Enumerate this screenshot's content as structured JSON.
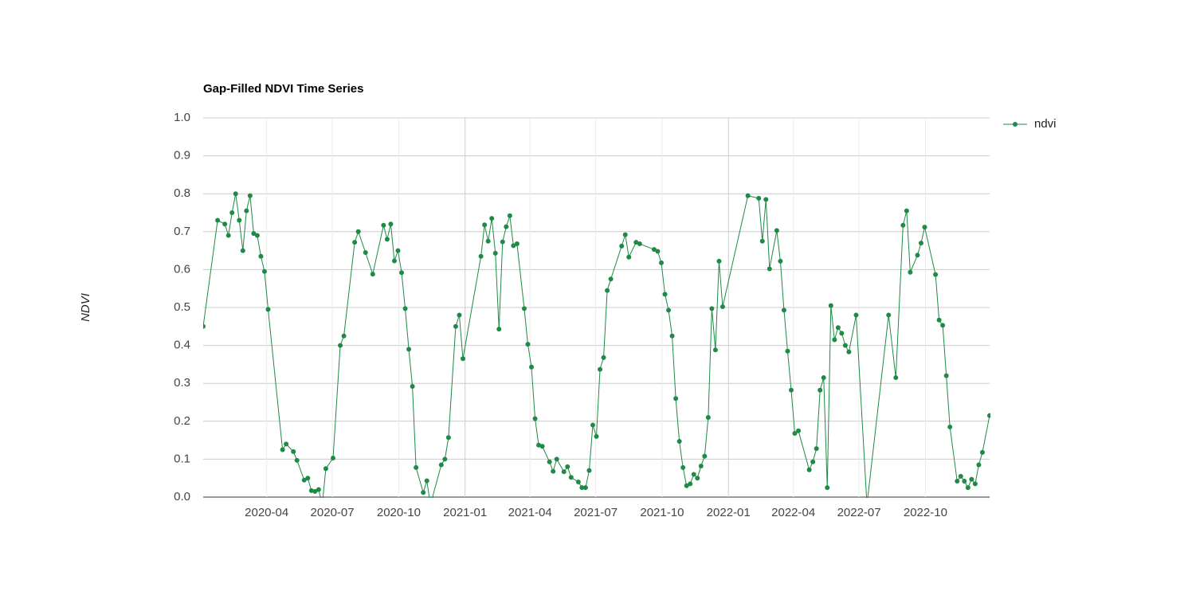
{
  "chart_data": {
    "type": "line",
    "title": "Gap-Filled NDVI Time Series",
    "y_label": "NDVI",
    "legend": "top-right",
    "grid": true,
    "xlim": [
      "2020-01-04",
      "2022-12-29"
    ],
    "xticks": [
      {
        "value": "2020-04-01",
        "label": "2020-04"
      },
      {
        "value": "2020-07-01",
        "label": "2020-07"
      },
      {
        "value": "2020-10-01",
        "label": "2020-10"
      },
      {
        "value": "2021-01-01",
        "label": "2021-01"
      },
      {
        "value": "2021-04-01",
        "label": "2021-04"
      },
      {
        "value": "2021-07-01",
        "label": "2021-07"
      },
      {
        "value": "2021-10-01",
        "label": "2021-10"
      },
      {
        "value": "2022-01-01",
        "label": "2022-01"
      },
      {
        "value": "2022-04-01",
        "label": "2022-04"
      },
      {
        "value": "2022-07-01",
        "label": "2022-07"
      },
      {
        "value": "2022-10-01",
        "label": "2022-10"
      }
    ],
    "ylim": [
      0,
      1
    ],
    "yticks": [
      {
        "value": 0,
        "label": "0.0"
      },
      0.1,
      0.2,
      0.3,
      0.4,
      0.5,
      0.6,
      0.7,
      0.8,
      0.9,
      {
        "value": 1,
        "label": "1.0"
      }
    ],
    "x": [
      "2020-01-04",
      "2020-01-24",
      "2020-02-03",
      "2020-02-08",
      "2020-02-13",
      "2020-02-18",
      "2020-02-23",
      "2020-02-28",
      "2020-03-04",
      "2020-03-09",
      "2020-03-14",
      "2020-03-19",
      "2020-03-24",
      "2020-03-29",
      "2020-04-03",
      "2020-04-23",
      "2020-04-28",
      "2020-05-08",
      "2020-05-13",
      "2020-05-23",
      "2020-05-28",
      "2020-06-02",
      "2020-06-07",
      "2020-06-12",
      "2020-06-17",
      "2020-06-22",
      "2020-07-02",
      "2020-07-12",
      "2020-07-17",
      "2020-08-01",
      "2020-08-06",
      "2020-08-16",
      "2020-08-26",
      "2020-09-10",
      "2020-09-15",
      "2020-09-20",
      "2020-09-25",
      "2020-09-30",
      "2020-10-05",
      "2020-10-10",
      "2020-10-15",
      "2020-10-20",
      "2020-10-25",
      "2020-11-04",
      "2020-11-09",
      "2020-11-14",
      "2020-11-29",
      "2020-12-04",
      "2020-12-09",
      "2020-12-19",
      "2020-12-24",
      "2020-12-29",
      "2021-01-23",
      "2021-01-28",
      "2021-02-02",
      "2021-02-07",
      "2021-02-12",
      "2021-02-17",
      "2021-02-22",
      "2021-02-27",
      "2021-03-04",
      "2021-03-09",
      "2021-03-14",
      "2021-03-24",
      "2021-03-29",
      "2021-04-03",
      "2021-04-08",
      "2021-04-13",
      "2021-04-18",
      "2021-04-28",
      "2021-05-03",
      "2021-05-08",
      "2021-05-18",
      "2021-05-23",
      "2021-05-28",
      "2021-06-07",
      "2021-06-12",
      "2021-06-17",
      "2021-06-22",
      "2021-06-27",
      "2021-07-02",
      "2021-07-07",
      "2021-07-12",
      "2021-07-17",
      "2021-07-22",
      "2021-08-06",
      "2021-08-11",
      "2021-08-16",
      "2021-08-26",
      "2021-08-31",
      "2021-09-20",
      "2021-09-25",
      "2021-09-30",
      "2021-10-05",
      "2021-10-10",
      "2021-10-15",
      "2021-10-20",
      "2021-10-25",
      "2021-10-30",
      "2021-11-04",
      "2021-11-09",
      "2021-11-14",
      "2021-11-19",
      "2021-11-24",
      "2021-11-29",
      "2021-12-04",
      "2021-12-09",
      "2021-12-14",
      "2021-12-19",
      "2021-12-24",
      "2022-01-28",
      "2022-02-12",
      "2022-02-17",
      "2022-02-22",
      "2022-02-27",
      "2022-03-09",
      "2022-03-14",
      "2022-03-19",
      "2022-03-24",
      "2022-03-29",
      "2022-04-03",
      "2022-04-08",
      "2022-04-23",
      "2022-04-28",
      "2022-05-03",
      "2022-05-08",
      "2022-05-13",
      "2022-05-18",
      "2022-05-23",
      "2022-05-28",
      "2022-06-02",
      "2022-06-07",
      "2022-06-12",
      "2022-06-17",
      "2022-06-27",
      "2022-07-12",
      "2022-08-11",
      "2022-08-21",
      "2022-08-31",
      "2022-09-05",
      "2022-09-10",
      "2022-09-20",
      "2022-09-25",
      "2022-09-30",
      "2022-10-15",
      "2022-10-20",
      "2022-10-25",
      "2022-10-30",
      "2022-11-04",
      "2022-11-14",
      "2022-11-19",
      "2022-11-24",
      "2022-11-29",
      "2022-12-04",
      "2022-12-09",
      "2022-12-14",
      "2022-12-19",
      "2022-12-29"
    ],
    "series": [
      {
        "name": "ndvi",
        "color": "#1f8a45",
        "values": [
          0.45,
          0.73,
          0.72,
          0.69,
          0.75,
          0.8,
          0.73,
          0.65,
          0.755,
          0.795,
          0.695,
          0.69,
          0.635,
          0.595,
          0.495,
          0.125,
          0.14,
          0.12,
          0.097,
          0.045,
          0.05,
          0.017,
          0.015,
          0.02,
          -0.02,
          0.075,
          0.103,
          0.4,
          0.425,
          0.672,
          0.7,
          0.645,
          0.588,
          0.717,
          0.68,
          0.72,
          0.623,
          0.65,
          0.592,
          0.497,
          0.39,
          0.292,
          0.078,
          0.012,
          0.043,
          -0.02,
          0.085,
          0.1,
          0.157,
          0.45,
          0.48,
          0.365,
          0.635,
          0.718,
          0.675,
          0.735,
          0.643,
          0.443,
          0.673,
          0.713,
          0.742,
          0.663,
          0.668,
          0.497,
          0.403,
          0.343,
          0.207,
          0.137,
          0.134,
          0.093,
          0.068,
          0.1,
          0.067,
          0.08,
          0.052,
          0.04,
          0.025,
          0.025,
          0.07,
          0.19,
          0.16,
          0.337,
          0.368,
          0.545,
          0.575,
          0.662,
          0.692,
          0.633,
          0.672,
          0.668,
          0.653,
          0.648,
          0.618,
          0.535,
          0.493,
          0.425,
          0.26,
          0.147,
          0.078,
          0.03,
          0.035,
          0.06,
          0.05,
          0.082,
          0.108,
          0.21,
          0.497,
          0.388,
          0.622,
          0.502,
          0.795,
          0.788,
          0.675,
          0.785,
          0.602,
          0.703,
          0.622,
          0.493,
          0.385,
          0.282,
          0.168,
          0.175,
          0.072,
          0.093,
          0.128,
          0.282,
          0.315,
          0.025,
          0.505,
          0.415,
          0.447,
          0.432,
          0.4,
          0.383,
          0.48,
          -0.02,
          0.48,
          0.315,
          0.717,
          0.755,
          0.593,
          0.638,
          0.67,
          0.712,
          0.587,
          0.467,
          0.453,
          0.32,
          0.185,
          0.042,
          0.055,
          0.042,
          0.025,
          0.047,
          0.035,
          0.085,
          0.118,
          0.215
        ]
      }
    ]
  }
}
